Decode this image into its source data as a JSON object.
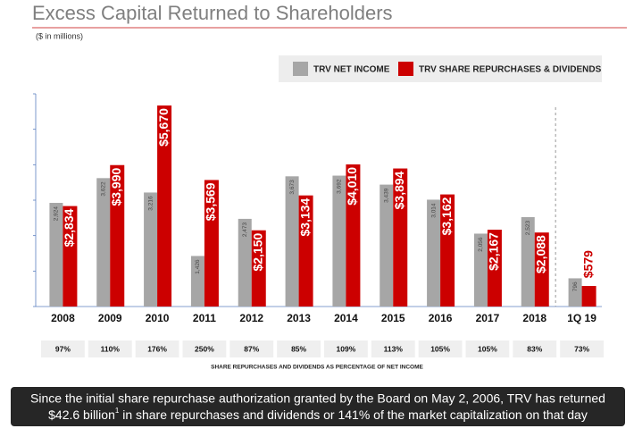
{
  "chart_data": {
    "type": "bar",
    "title": "Excess Capital Returned to Shareholders",
    "subtitle": "($ in millions)",
    "categories": [
      "2008",
      "2009",
      "2010",
      "2011",
      "2012",
      "2013",
      "2014",
      "2015",
      "2016",
      "2017",
      "2018",
      "1Q 19"
    ],
    "series": [
      {
        "name": "TRV NET INCOME",
        "color": "#a6a6a6",
        "values": [
          2924,
          3622,
          3216,
          1426,
          2473,
          3673,
          3692,
          3439,
          3014,
          2056,
          2523,
          796
        ],
        "value_labels": [
          "2,924",
          "3,622",
          "3,216",
          "1,426",
          "2,473",
          "3,673",
          "3,692",
          "3,439",
          "3,014",
          "2,056",
          "2,523",
          "796"
        ]
      },
      {
        "name": "TRV SHARE REPURCHASES & DIVIDENDS",
        "color": "#cc0000",
        "values": [
          2834,
          3990,
          5670,
          3569,
          2150,
          3134,
          4010,
          3894,
          3162,
          2167,
          2088,
          579
        ],
        "value_labels": [
          "$2,834",
          "$3,990",
          "$5,670",
          "$3,569",
          "$2,150",
          "$3,134",
          "$4,010",
          "$3,894",
          "$3,162",
          "$2,167",
          "$2,088",
          "$579"
        ]
      }
    ],
    "ylim": [
      0,
      6000
    ],
    "yticks": [
      0,
      1000,
      2000,
      3000,
      4000,
      5000,
      6000
    ],
    "ratios": [
      "97%",
      "110%",
      "176%",
      "250%",
      "87%",
      "85%",
      "109%",
      "113%",
      "105%",
      "105%",
      "83%",
      "73%"
    ],
    "ratio_caption": "SHARE REPURCHASES AND DIVIDENDS AS PERCENTAGE OF NET INCOME",
    "banner": [
      "Since the initial share repurchase authorization granted by the Board on May 2, 2006, TRV has returned",
      "$42.6 billion",
      "1",
      " in share repurchases and dividends or 141% of the market capitalization on that day"
    ]
  }
}
